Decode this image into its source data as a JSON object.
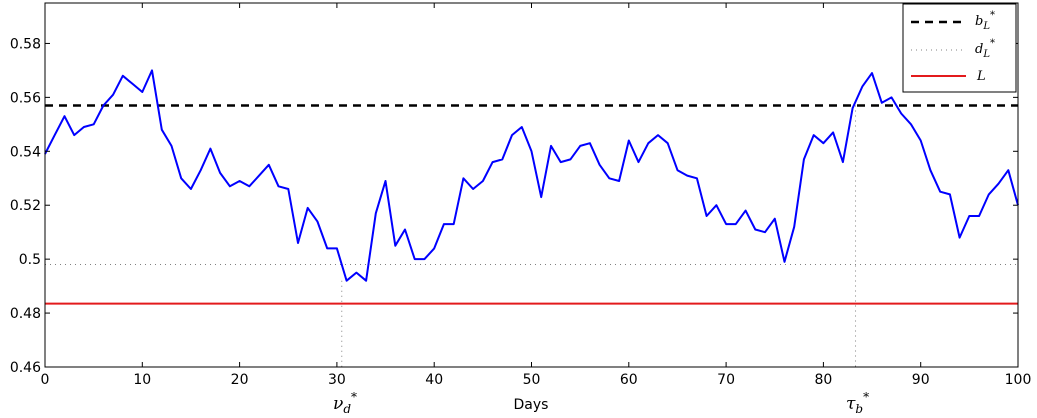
{
  "chart_data": {
    "type": "line",
    "xlabel": "Days",
    "ylabel": "",
    "title": "",
    "xlim": [
      0,
      100
    ],
    "ylim": [
      0.46,
      0.595
    ],
    "x_ticks": [
      0,
      10,
      20,
      30,
      40,
      50,
      60,
      70,
      80,
      90,
      100
    ],
    "x_tick_labels": [
      "0",
      "10",
      "20",
      "30",
      "40",
      "50",
      "60",
      "70",
      "80",
      "90",
      "100"
    ],
    "y_ticks": [
      0.46,
      0.48,
      0.5,
      0.52,
      0.54,
      0.56,
      0.58
    ],
    "y_tick_labels": [
      "0.46",
      "0.48",
      "0.5",
      "0.52",
      "0.54",
      "0.56",
      "0.58"
    ],
    "grid": false,
    "legend_position": "top-right",
    "series": [
      {
        "name": "",
        "color": "#0000ff",
        "x": [
          0,
          1,
          2,
          3,
          4,
          5,
          6,
          7,
          8,
          9,
          10,
          11,
          12,
          13,
          14,
          15,
          16,
          17,
          18,
          19,
          20,
          21,
          22,
          23,
          24,
          25,
          26,
          27,
          28,
          29,
          30,
          31,
          32,
          33,
          34,
          35,
          36,
          37,
          38,
          39,
          40,
          41,
          42,
          43,
          44,
          45,
          46,
          47,
          48,
          49,
          50,
          51,
          52,
          53,
          54,
          55,
          56,
          57,
          58,
          59,
          60,
          61,
          62,
          63,
          64,
          65,
          66,
          67,
          68,
          69,
          70,
          71,
          72,
          73,
          74,
          75,
          76,
          77,
          78,
          79,
          80,
          81,
          82,
          83,
          84,
          85,
          86,
          87,
          88,
          89,
          90,
          91,
          92,
          93,
          94,
          95,
          96,
          97,
          98,
          99,
          100
        ],
        "values": [
          0.539,
          0.546,
          0.553,
          0.546,
          0.549,
          0.55,
          0.557,
          0.561,
          0.568,
          0.565,
          0.562,
          0.57,
          0.548,
          0.542,
          0.53,
          0.526,
          0.533,
          0.541,
          0.532,
          0.527,
          0.529,
          0.527,
          0.531,
          0.535,
          0.527,
          0.526,
          0.506,
          0.519,
          0.514,
          0.504,
          0.504,
          0.492,
          0.495,
          0.492,
          0.517,
          0.529,
          0.505,
          0.511,
          0.5,
          0.5,
          0.504,
          0.513,
          0.513,
          0.53,
          0.526,
          0.529,
          0.536,
          0.537,
          0.546,
          0.549,
          0.54,
          0.523,
          0.542,
          0.536,
          0.537,
          0.542,
          0.543,
          0.535,
          0.53,
          0.529,
          0.544,
          0.536,
          0.543,
          0.546,
          0.543,
          0.533,
          0.531,
          0.53,
          0.516,
          0.52,
          0.513,
          0.513,
          0.518,
          0.511,
          0.51,
          0.515,
          0.499,
          0.512,
          0.537,
          0.546,
          0.543,
          0.547,
          0.536,
          0.556,
          0.564,
          0.569,
          0.558,
          0.56,
          0.554,
          0.55,
          0.544,
          0.533,
          0.525,
          0.524,
          0.508,
          0.516,
          0.516,
          0.524,
          0.528,
          0.533,
          0.52
        ]
      }
    ],
    "reference_lines": [
      {
        "name": "b_L^*",
        "value": 0.557,
        "style": "dashed",
        "color": "#000000"
      },
      {
        "name": "d_L^*",
        "value": 0.498,
        "style": "dotted",
        "color": "#808080"
      },
      {
        "name": "L",
        "value": 0.4835,
        "style": "solid",
        "color": "#e31a1c"
      }
    ],
    "vertical_markers": [
      {
        "label": "ν_d^*",
        "x": 30.5,
        "y_top": 0.492
      },
      {
        "label": "τ_b^*",
        "x": 83.3,
        "y_top": 0.557
      }
    ]
  }
}
